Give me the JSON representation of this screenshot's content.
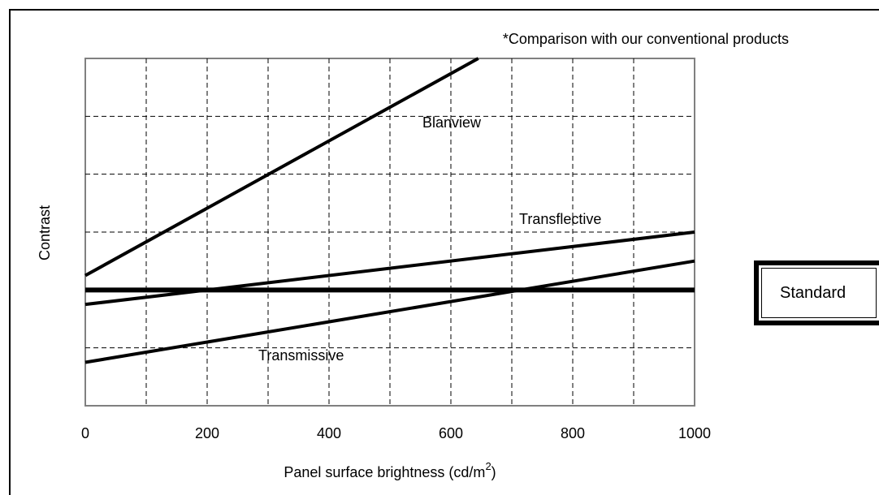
{
  "chart_data": {
    "type": "line",
    "title": "",
    "annotation": "*Comparison with our conventional products",
    "xlabel": "Panel surface brightness (cd/m",
    "xlabel_sup": "2",
    "xlabel_end": ")",
    "ylabel": "Contrast",
    "xlim": [
      0,
      1000
    ],
    "ylim": [
      0,
      6
    ],
    "x_ticks": [
      0,
      200,
      400,
      600,
      800,
      1000
    ],
    "x_tick_labels": [
      "0",
      "200",
      "400",
      "600",
      "800",
      "1000"
    ],
    "grid": true,
    "series": [
      {
        "name": "Blanview",
        "x": [
          0,
          645
        ],
        "y": [
          2.25,
          6
        ]
      },
      {
        "name": "Transflective",
        "x": [
          0,
          1000
        ],
        "y": [
          1.75,
          3
        ]
      },
      {
        "name": "Transmissive",
        "x": [
          0,
          1000
        ],
        "y": [
          0.75,
          2.5
        ]
      },
      {
        "name": "Standard",
        "x": [
          0,
          1000
        ],
        "y": [
          2,
          2
        ]
      }
    ],
    "legend": "none",
    "standard_label": "Standard"
  }
}
